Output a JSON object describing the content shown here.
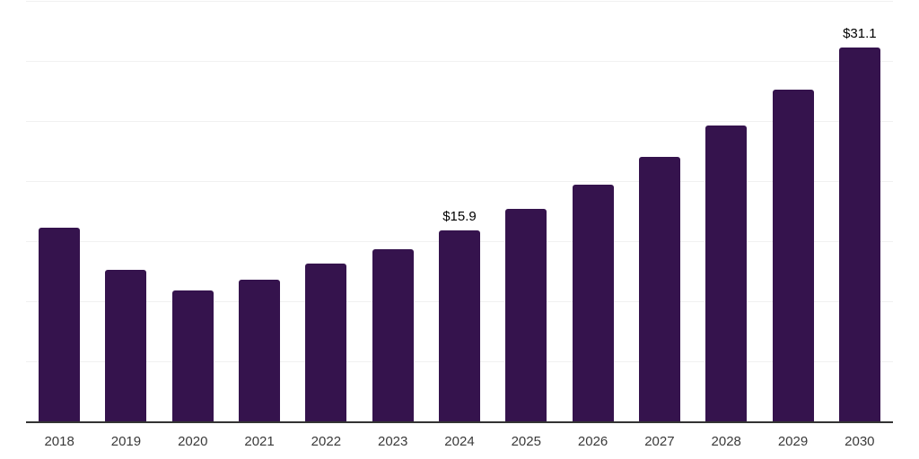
{
  "chart": {
    "background_color": "#ffffff",
    "bar_color": "#35134D",
    "gridline_color": "#f1f1f1",
    "axis_line_color": "#333333",
    "tick_label_color": "#3a3a3a",
    "data_label_color": "#000000"
  },
  "chart_data": {
    "type": "bar",
    "title": "",
    "xlabel": "",
    "ylabel": "",
    "categories": [
      "2018",
      "2019",
      "2020",
      "2021",
      "2022",
      "2023",
      "2024",
      "2025",
      "2026",
      "2027",
      "2028",
      "2029",
      "2030"
    ],
    "values": [
      16.1,
      12.6,
      10.9,
      11.8,
      13.1,
      14.3,
      15.9,
      17.7,
      19.7,
      22.0,
      24.6,
      27.6,
      31.1
    ],
    "data_labels": [
      null,
      null,
      null,
      null,
      null,
      null,
      "$15.9",
      null,
      null,
      null,
      null,
      null,
      "$31.1"
    ],
    "ylim": [
      0,
      35
    ],
    "grid_step": 5,
    "grid": true,
    "legend": false,
    "y_axis_labels_visible": false
  }
}
